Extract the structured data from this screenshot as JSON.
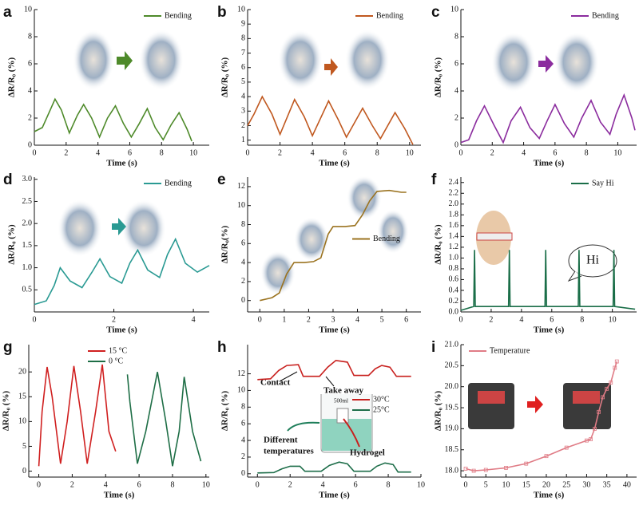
{
  "chart_data": [
    {
      "type": "line",
      "panel": "a",
      "xlabel": "Time (s)",
      "ylabel": "ΔR/R₀ (%)",
      "xlim": [
        0,
        11
      ],
      "ylim": [
        0,
        10
      ],
      "xticks": [
        0,
        2,
        4,
        6,
        8,
        10
      ],
      "yticks": [
        0,
        2,
        4,
        6,
        8,
        10
      ],
      "legend": "upper right",
      "series": [
        {
          "name": "Bending",
          "color": "#4e8a2a",
          "x": [
            0,
            0.5,
            1,
            1.3,
            1.7,
            2.2,
            2.7,
            3.1,
            3.6,
            4.1,
            4.6,
            5.1,
            5.6,
            6.1,
            6.6,
            7.1,
            7.6,
            8.1,
            8.6,
            9.1,
            9.6,
            9.9
          ],
          "values": [
            1.0,
            1.3,
            2.6,
            3.4,
            2.6,
            0.9,
            2.2,
            3.0,
            2.0,
            0.6,
            2.0,
            2.9,
            1.6,
            0.6,
            1.6,
            2.7,
            1.3,
            0.4,
            1.5,
            2.4,
            1.2,
            0.3
          ]
        }
      ]
    },
    {
      "type": "line",
      "panel": "b",
      "xlabel": "Time (s)",
      "ylabel": "ΔR/R₀ (%)",
      "xlim": [
        0,
        10.7
      ],
      "ylim": [
        0.65,
        10
      ],
      "xticks": [
        0,
        2,
        4,
        6,
        8,
        10
      ],
      "yticks": [
        1,
        2,
        3,
        4,
        5,
        6,
        7,
        8,
        9,
        10
      ],
      "legend": "upper right",
      "series": [
        {
          "name": "Bending",
          "color": "#c0581f",
          "x": [
            0,
            0.4,
            0.9,
            1.5,
            2.0,
            2.9,
            3.5,
            4.0,
            5.0,
            5.6,
            6.1,
            7.1,
            7.7,
            8.2,
            9.1,
            9.7,
            10.2
          ],
          "values": [
            2.0,
            2.8,
            4.0,
            2.8,
            1.4,
            3.8,
            2.6,
            1.3,
            3.7,
            2.4,
            1.2,
            3.2,
            2.0,
            1.1,
            2.9,
            1.8,
            0.7
          ]
        }
      ]
    },
    {
      "type": "line",
      "panel": "c",
      "xlabel": "Time (s)",
      "ylabel": "ΔR/R₀ (%)",
      "xlim": [
        0,
        11.2
      ],
      "ylim": [
        0,
        10
      ],
      "xticks": [
        0,
        2,
        4,
        6,
        8,
        10
      ],
      "yticks": [
        0,
        2,
        4,
        6,
        8,
        10
      ],
      "legend": "upper right",
      "series": [
        {
          "name": "Bending",
          "color": "#8b2c9e",
          "x": [
            0,
            0.5,
            1.0,
            1.5,
            2.1,
            2.7,
            3.2,
            3.8,
            4.4,
            5.0,
            5.5,
            6.0,
            6.6,
            7.2,
            7.7,
            8.3,
            8.9,
            9.5,
            9.9,
            10.4,
            10.9,
            11.1
          ],
          "values": [
            0.2,
            0.4,
            1.8,
            2.9,
            1.5,
            0.2,
            1.8,
            2.8,
            1.3,
            0.5,
            1.8,
            3.0,
            1.6,
            0.6,
            2.0,
            3.3,
            1.7,
            0.8,
            2.3,
            3.7,
            2.0,
            1.1
          ]
        }
      ]
    },
    {
      "type": "line",
      "panel": "d",
      "xlabel": "Time (s)",
      "ylabel": "ΔR/R₀ (%)",
      "xlim": [
        0,
        4.4
      ],
      "ylim": [
        0,
        3.05
      ],
      "xticks": [
        0,
        2,
        4
      ],
      "yticks": [
        0.5,
        {
          "value": 1,
          "label": "1.0"
        },
        1.5,
        {
          "value": 2,
          "label": "2.0"
        },
        2.5,
        {
          "value": 3,
          "label": "3.0"
        }
      ],
      "legend": "upper right",
      "series": [
        {
          "name": "Bending",
          "color": "#2a9a93",
          "x": [
            0,
            0.3,
            0.5,
            0.65,
            0.9,
            1.2,
            1.45,
            1.65,
            1.9,
            2.2,
            2.4,
            2.6,
            2.85,
            3.15,
            3.35,
            3.55,
            3.8,
            4.1,
            4.4
          ],
          "values": [
            0.17,
            0.25,
            0.6,
            1.0,
            0.7,
            0.55,
            0.9,
            1.2,
            0.8,
            0.65,
            1.1,
            1.4,
            0.95,
            0.78,
            1.3,
            1.65,
            1.1,
            0.9,
            1.05
          ]
        }
      ]
    },
    {
      "type": "line",
      "panel": "e",
      "xlabel": "Time (s)",
      "ylabel": "ΔR/R₀(%)",
      "xlim": [
        -0.5,
        6.6
      ],
      "ylim": [
        -1.2,
        13
      ],
      "xticks": [
        0,
        1,
        2,
        3,
        4,
        5,
        6
      ],
      "yticks": [
        0,
        2,
        4,
        6,
        8,
        10,
        12
      ],
      "legend": "center right",
      "series": [
        {
          "name": "Bending",
          "color": "#9b7320",
          "x": [
            0,
            0.5,
            0.8,
            1.1,
            1.4,
            1.8,
            2.2,
            2.5,
            2.8,
            3.0,
            3.5,
            3.9,
            4.2,
            4.5,
            4.8,
            5.3,
            5.8,
            6.0
          ],
          "values": [
            0,
            0.3,
            0.8,
            2.8,
            4.0,
            4.0,
            4.1,
            4.5,
            7.0,
            7.8,
            7.8,
            7.9,
            9.0,
            10.5,
            11.5,
            11.6,
            11.4,
            11.4
          ]
        }
      ]
    },
    {
      "type": "line",
      "panel": "f",
      "xlabel": "Time (s)",
      "ylabel": "ΔR/R₀ (%)",
      "xlim": [
        0,
        11.6
      ],
      "ylim": [
        0,
        2.5
      ],
      "xticks": [
        0,
        2,
        4,
        6,
        8,
        10
      ],
      "yticks": [
        {
          "value": 0,
          "label": "0.0"
        },
        0.2,
        0.4,
        0.6,
        0.8,
        {
          "value": 1,
          "label": "1.0"
        },
        1.2,
        1.4,
        1.6,
        1.8,
        {
          "value": 2,
          "label": "2.0"
        },
        2.2,
        2.4
      ],
      "legend": "upper right",
      "annotations": [
        "Hi"
      ],
      "series": [
        {
          "name": "Say Hi",
          "color": "#1a6e48",
          "x": [
            0,
            0.85,
            0.9,
            0.95,
            3.15,
            3.2,
            3.25,
            5.55,
            5.6,
            5.65,
            7.75,
            7.8,
            7.85,
            10.05,
            10.1,
            10.15,
            11.5
          ],
          "values": [
            0.03,
            0.1,
            1.15,
            0.1,
            0.1,
            1.15,
            0.1,
            0.1,
            1.15,
            0.1,
            0.1,
            1.15,
            0.1,
            0.1,
            1.15,
            0.1,
            0.05
          ]
        }
      ]
    },
    {
      "type": "line",
      "panel": "g",
      "xlabel": "Time (s)",
      "ylabel": "ΔR/R₀ (%)",
      "xlim": [
        -0.6,
        10.2
      ],
      "ylim": [
        -1.2,
        25.5
      ],
      "xticks": [
        0,
        2,
        4,
        6,
        8,
        10
      ],
      "yticks": [
        0,
        5,
        10,
        15,
        20
      ],
      "legend": "upper center",
      "series": [
        {
          "name": "15 °C",
          "color": "#d02020",
          "x": [
            0,
            0.2,
            0.5,
            0.8,
            1.3,
            1.7,
            2.1,
            2.5,
            2.9,
            3.4,
            3.8,
            4.2,
            4.6
          ],
          "values": [
            1,
            12,
            21,
            15,
            1.5,
            10,
            21.2,
            12,
            1.5,
            12,
            21.5,
            8,
            4
          ]
        },
        {
          "name": "0 °C",
          "color": "#1e6e46",
          "x": [
            5.3,
            5.45,
            5.9,
            6.4,
            7.1,
            7.6,
            8.0,
            8.4,
            8.7,
            9.2,
            9.7
          ],
          "values": [
            19.5,
            14,
            1.5,
            8,
            20,
            10,
            1,
            8,
            19,
            8,
            2
          ]
        }
      ]
    },
    {
      "type": "line",
      "panel": "h",
      "xlabel": "Time (s)",
      "ylabel": "ΔR/R₀ (%)",
      "xlim": [
        -0.6,
        10
      ],
      "ylim": [
        -0.4,
        15.5
      ],
      "xticks": [
        0,
        2,
        4,
        6,
        8,
        10
      ],
      "yticks": [
        0,
        2,
        4,
        6,
        8,
        10,
        12
      ],
      "legend": "center right",
      "annotations": [
        "Contact",
        "Take away",
        "Different",
        "temperatures",
        "Hydrogel",
        "500ml"
      ],
      "series": [
        {
          "name": "30°C",
          "color": "#c8201e",
          "x": [
            0,
            0.8,
            1.3,
            1.8,
            2.5,
            2.8,
            3.8,
            4.3,
            4.8,
            5.5,
            5.9,
            6.8,
            7.2,
            7.6,
            8.1,
            8.5,
            9.4
          ],
          "values": [
            11.3,
            11.4,
            12.4,
            13.0,
            13.1,
            11.7,
            11.7,
            12.8,
            13.6,
            13.4,
            11.8,
            11.8,
            12.6,
            13.0,
            12.8,
            11.7,
            11.7
          ]
        },
        {
          "name": "25°C",
          "color": "#1e6e4a",
          "x": [
            0,
            1.0,
            1.5,
            2.0,
            2.6,
            2.9,
            3.9,
            4.4,
            5.0,
            5.5,
            5.9,
            6.9,
            7.3,
            7.8,
            8.3,
            8.6,
            9.4
          ],
          "values": [
            0.1,
            0.15,
            0.6,
            0.9,
            0.9,
            0.3,
            0.3,
            1.0,
            1.4,
            1.2,
            0.3,
            0.3,
            0.9,
            1.3,
            1.1,
            0.2,
            0.2
          ]
        }
      ]
    },
    {
      "type": "line",
      "panel": "i",
      "xlabel": "Time (s)",
      "ylabel": "ΔR/R₀ (%)",
      "xlim": [
        -1.2,
        42.4
      ],
      "ylim": [
        17.85,
        21.0
      ],
      "xticks": [
        0,
        5,
        10,
        15,
        20,
        25,
        30,
        35,
        40
      ],
      "yticks": [
        {
          "value": 18,
          "label": "18.0"
        },
        18.5,
        {
          "value": 19,
          "label": "19.0"
        },
        19.5,
        {
          "value": 20,
          "label": "20.0"
        },
        20.5,
        {
          "value": 21,
          "label": "21.0"
        }
      ],
      "legend": "upper left",
      "markers": true,
      "series": [
        {
          "name": "Temperature",
          "color": "#e07c86",
          "x": [
            0,
            2,
            5,
            10,
            15,
            20,
            25,
            30,
            31,
            32,
            33,
            34,
            35,
            36,
            37,
            37.5
          ],
          "values": [
            18.05,
            18.0,
            18.02,
            18.07,
            18.17,
            18.35,
            18.55,
            18.72,
            18.75,
            19.0,
            19.4,
            19.75,
            19.95,
            20.1,
            20.45,
            20.6
          ]
        }
      ]
    }
  ]
}
